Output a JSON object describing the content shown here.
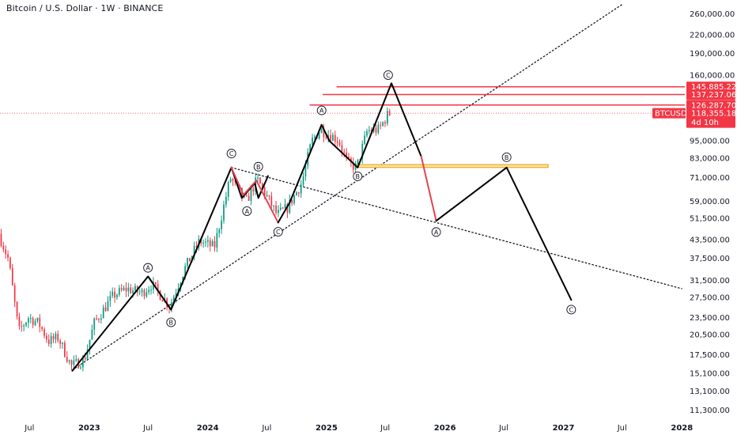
{
  "header": {
    "title": "Bitcoin / U.S. Dollar · 1W · BINANCE"
  },
  "colors": {
    "up": "#089981",
    "down": "#f23645",
    "resistance": "#f23645",
    "support_box_fill": "#ffe2a8",
    "support_box_stroke": "#e0a000",
    "wave": "#000000",
    "wave_red": "#e0454f",
    "price_line": "#f23645"
  },
  "chart_data": {
    "type": "candlestick",
    "symbol": "BTCUSD",
    "interval": "1W",
    "exchange": "BINANCE",
    "y_scale": "log",
    "ylim": [
      10500,
      290000
    ],
    "xlim": [
      "2022-04-01",
      "2028-01-10"
    ],
    "y_ticks": [
      {
        "value": 260000,
        "label": "260,000.00"
      },
      {
        "value": 220000,
        "label": "220,000.00"
      },
      {
        "value": 190000,
        "label": "190,000.00"
      },
      {
        "value": 160000,
        "label": "160,000.00"
      },
      {
        "value": 95000,
        "label": "95,000.00"
      },
      {
        "value": 83000,
        "label": "83,000.00"
      },
      {
        "value": 71000,
        "label": "71,000.00"
      },
      {
        "value": 59000,
        "label": "59,000.00"
      },
      {
        "value": 51500,
        "label": "51,500.00"
      },
      {
        "value": 43500,
        "label": "43,500.00"
      },
      {
        "value": 37500,
        "label": "37,500.00"
      },
      {
        "value": 31500,
        "label": "31,500.00"
      },
      {
        "value": 27500,
        "label": "27,500.00"
      },
      {
        "value": 23500,
        "label": "23,500.00"
      },
      {
        "value": 20500,
        "label": "20,500.00"
      },
      {
        "value": 17500,
        "label": "17,500.00"
      },
      {
        "value": 15100,
        "label": "15,100.00"
      },
      {
        "value": 13100,
        "label": "13,100.00"
      },
      {
        "value": 11300,
        "label": "11,300.00"
      }
    ],
    "x_ticks": [
      {
        "date": "2022-07-01",
        "label": "Jul",
        "year": false
      },
      {
        "date": "2023-01-01",
        "label": "2023",
        "year": true
      },
      {
        "date": "2023-07-01",
        "label": "Jul",
        "year": false
      },
      {
        "date": "2024-01-01",
        "label": "2024",
        "year": true
      },
      {
        "date": "2024-07-01",
        "label": "Jul",
        "year": false
      },
      {
        "date": "2025-01-01",
        "label": "2025",
        "year": true
      },
      {
        "date": "2025-07-01",
        "label": "Jul",
        "year": false
      },
      {
        "date": "2026-01-01",
        "label": "2026",
        "year": true
      },
      {
        "date": "2026-07-01",
        "label": "Jul",
        "year": false
      },
      {
        "date": "2027-01-01",
        "label": "2027",
        "year": true
      },
      {
        "date": "2027-07-01",
        "label": "Jul",
        "year": false
      },
      {
        "date": "2028-01-01",
        "label": "2028",
        "year": true
      }
    ],
    "price_path": [
      [
        "2022-04-01",
        45500
      ],
      [
        "2022-05-01",
        37000
      ],
      [
        "2022-06-01",
        21000
      ],
      [
        "2022-07-01",
        23500
      ],
      [
        "2022-08-01",
        22500
      ],
      [
        "2022-09-01",
        19500
      ],
      [
        "2022-10-01",
        20000
      ],
      [
        "2022-11-10",
        16000
      ],
      [
        "2022-12-20",
        16800
      ],
      [
        "2023-01-20",
        22500
      ],
      [
        "2023-03-20",
        28000
      ],
      [
        "2023-05-01",
        29500
      ],
      [
        "2023-06-15",
        28500
      ],
      [
        "2023-07-15",
        30500
      ],
      [
        "2023-09-10",
        25800
      ],
      [
        "2023-10-25",
        34500
      ],
      [
        "2023-12-10",
        43000
      ],
      [
        "2024-01-25",
        41000
      ],
      [
        "2024-03-14",
        71000
      ],
      [
        "2024-05-01",
        58500
      ],
      [
        "2024-06-05",
        70000
      ],
      [
        "2024-08-05",
        53000
      ],
      [
        "2024-09-06",
        56000
      ],
      [
        "2024-10-20",
        68000
      ],
      [
        "2024-11-20",
        95000
      ],
      [
        "2024-12-17",
        104000
      ],
      [
        "2025-02-10",
        96000
      ],
      [
        "2025-03-10",
        80000
      ],
      [
        "2025-04-07",
        77000
      ],
      [
        "2025-05-10",
        103000
      ],
      [
        "2025-06-15",
        104000
      ],
      [
        "2025-07-14",
        118000
      ]
    ],
    "last_price": {
      "label": "BTCUSD",
      "value": "118,355.18",
      "countdown": "4d 10h",
      "price": 118355.18
    },
    "resistance_levels": [
      {
        "price": 145885.22,
        "label": "145,885.22",
        "from": "2025-02-01"
      },
      {
        "price": 137237.06,
        "label": "137,237.06",
        "from": "2024-12-20"
      },
      {
        "price": 126287.7,
        "label": "126,287.70",
        "from": "2024-11-10"
      }
    ],
    "support_zone": {
      "from": "2025-04-01",
      "to": "2026-11-15",
      "low": 77000,
      "high": 78800
    },
    "trendlines": [
      {
        "points": [
          [
            "2022-11-10",
            15500
          ],
          [
            "2027-07-01",
            280000
          ]
        ],
        "style": "dotted"
      },
      {
        "points": [
          [
            "2024-03-14",
            77000
          ],
          [
            "2028-01-01",
            29500
          ]
        ],
        "style": "dotted"
      }
    ],
    "wave_lines": [
      {
        "color": "black",
        "points": [
          [
            "2022-11-10",
            15400
          ],
          [
            "2023-07-01",
            32500
          ],
          [
            "2023-09-10",
            25000
          ],
          [
            "2024-03-14",
            77000
          ]
        ]
      },
      {
        "color": "black",
        "points": [
          [
            "2024-03-14",
            77000
          ],
          [
            "2024-04-15",
            60500
          ],
          [
            "2024-05-25",
            68000
          ],
          [
            "2024-06-05",
            60500
          ],
          [
            "2024-07-05",
            72000
          ]
        ]
      },
      {
        "color": "red",
        "points": [
          [
            "2024-03-14",
            77000
          ],
          [
            "2024-04-20",
            62000
          ],
          [
            "2024-05-30",
            69500
          ],
          [
            "2024-08-05",
            49800
          ]
        ]
      },
      {
        "color": "black",
        "points": [
          [
            "2024-08-05",
            49800
          ],
          [
            "2024-09-10",
            58500
          ],
          [
            "2024-12-17",
            108000
          ],
          [
            "2025-01-10",
            95000
          ],
          [
            "2025-04-07",
            77000
          ],
          [
            "2025-07-20",
            150000
          ],
          [
            "2025-10-20",
            84000
          ]
        ]
      },
      {
        "color": "red",
        "points": [
          [
            "2025-10-20",
            84000
          ],
          [
            "2025-12-05",
            50500
          ]
        ]
      },
      {
        "color": "black",
        "points": [
          [
            "2025-12-05",
            50500
          ],
          [
            "2026-07-10",
            77000
          ],
          [
            "2027-01-25",
            27000
          ]
        ]
      }
    ],
    "wave_labels": [
      {
        "text": "A",
        "date": "2023-07-01",
        "price": 34800
      },
      {
        "text": "B",
        "date": "2023-09-10",
        "price": 22600
      },
      {
        "text": "C",
        "date": "2024-03-14",
        "price": 86000
      },
      {
        "text": "A",
        "date": "2024-05-01",
        "price": 54500
      },
      {
        "text": "B",
        "date": "2024-06-05",
        "price": 77500
      },
      {
        "text": "C",
        "date": "2024-08-05",
        "price": 46300
      },
      {
        "text": "A",
        "date": "2024-12-17",
        "price": 121000
      },
      {
        "text": "B",
        "date": "2025-04-07",
        "price": 71800
      },
      {
        "text": "C",
        "date": "2025-07-10",
        "price": 160000
      },
      {
        "text": "A",
        "date": "2025-12-05",
        "price": 46200
      },
      {
        "text": "B",
        "date": "2026-07-10",
        "price": 83500
      },
      {
        "text": "C",
        "date": "2027-01-25",
        "price": 25000
      }
    ]
  }
}
